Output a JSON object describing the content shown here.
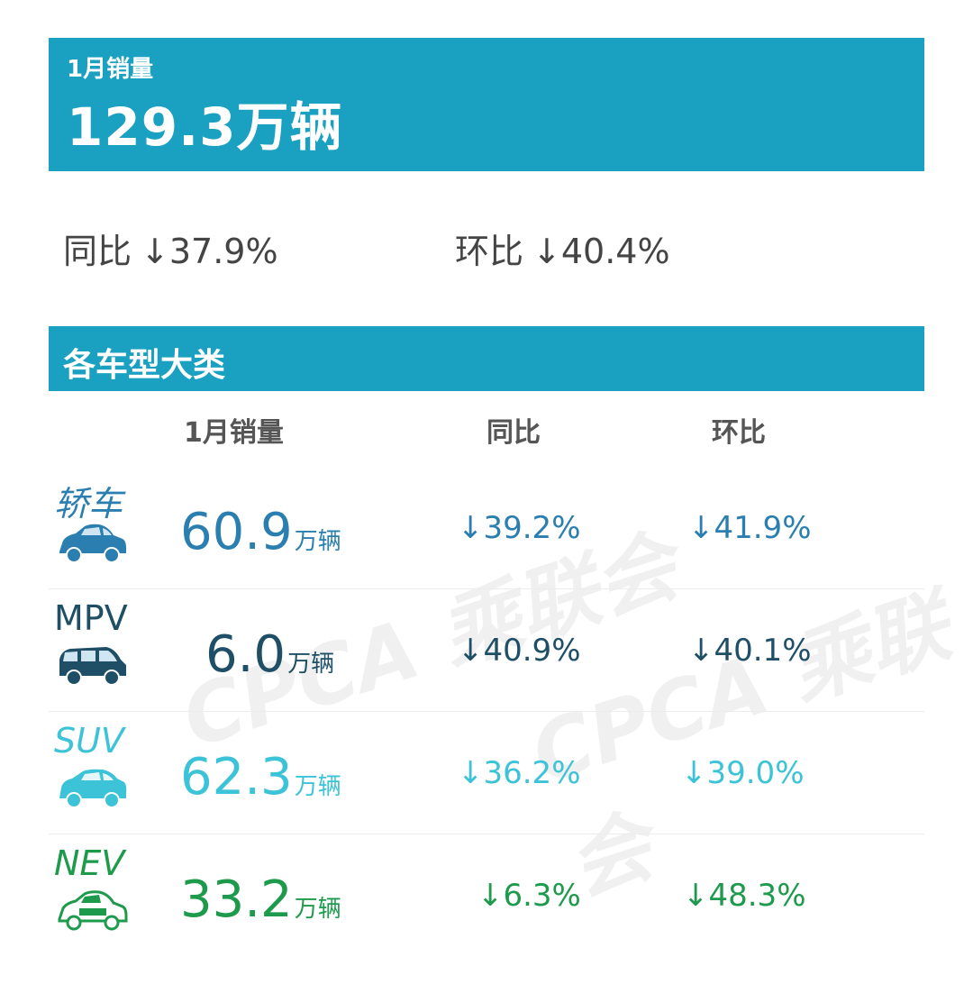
{
  "summary": {
    "label": "1月销量",
    "total": "129.3万辆",
    "yoy_label": "同比",
    "yoy_value": "↓37.9%",
    "mom_label": "环比",
    "mom_value": "↓40.4%"
  },
  "section": {
    "title": "各车型大类"
  },
  "table": {
    "headers": [
      "1月销量",
      "同比",
      "环比"
    ],
    "rows": [
      {
        "name": "轿车",
        "icon": "sedan-icon",
        "sales": "60.9",
        "unit": "万辆",
        "yoy": "↓39.2%",
        "mom": "↓41.9%",
        "color": "#2a7fb0"
      },
      {
        "name": "MPV",
        "icon": "mpv-icon",
        "sales": "6.0",
        "unit": "万辆",
        "yoy": "↓40.9%",
        "mom": "↓40.1%",
        "color": "#1e4f66"
      },
      {
        "name": "SUV",
        "icon": "suv-icon",
        "sales": "62.3",
        "unit": "万辆",
        "yoy": "↓36.2%",
        "mom": "↓39.0%",
        "color": "#3cc3d8"
      },
      {
        "name": "NEV",
        "icon": "nev-icon",
        "sales": "33.2",
        "unit": "万辆",
        "yoy": "↓6.3%",
        "mom": "↓48.3%",
        "color": "#1e9a4c"
      }
    ]
  },
  "watermark": "CPCA 乘联会",
  "colors": {
    "banner": "#1aa0c0"
  }
}
